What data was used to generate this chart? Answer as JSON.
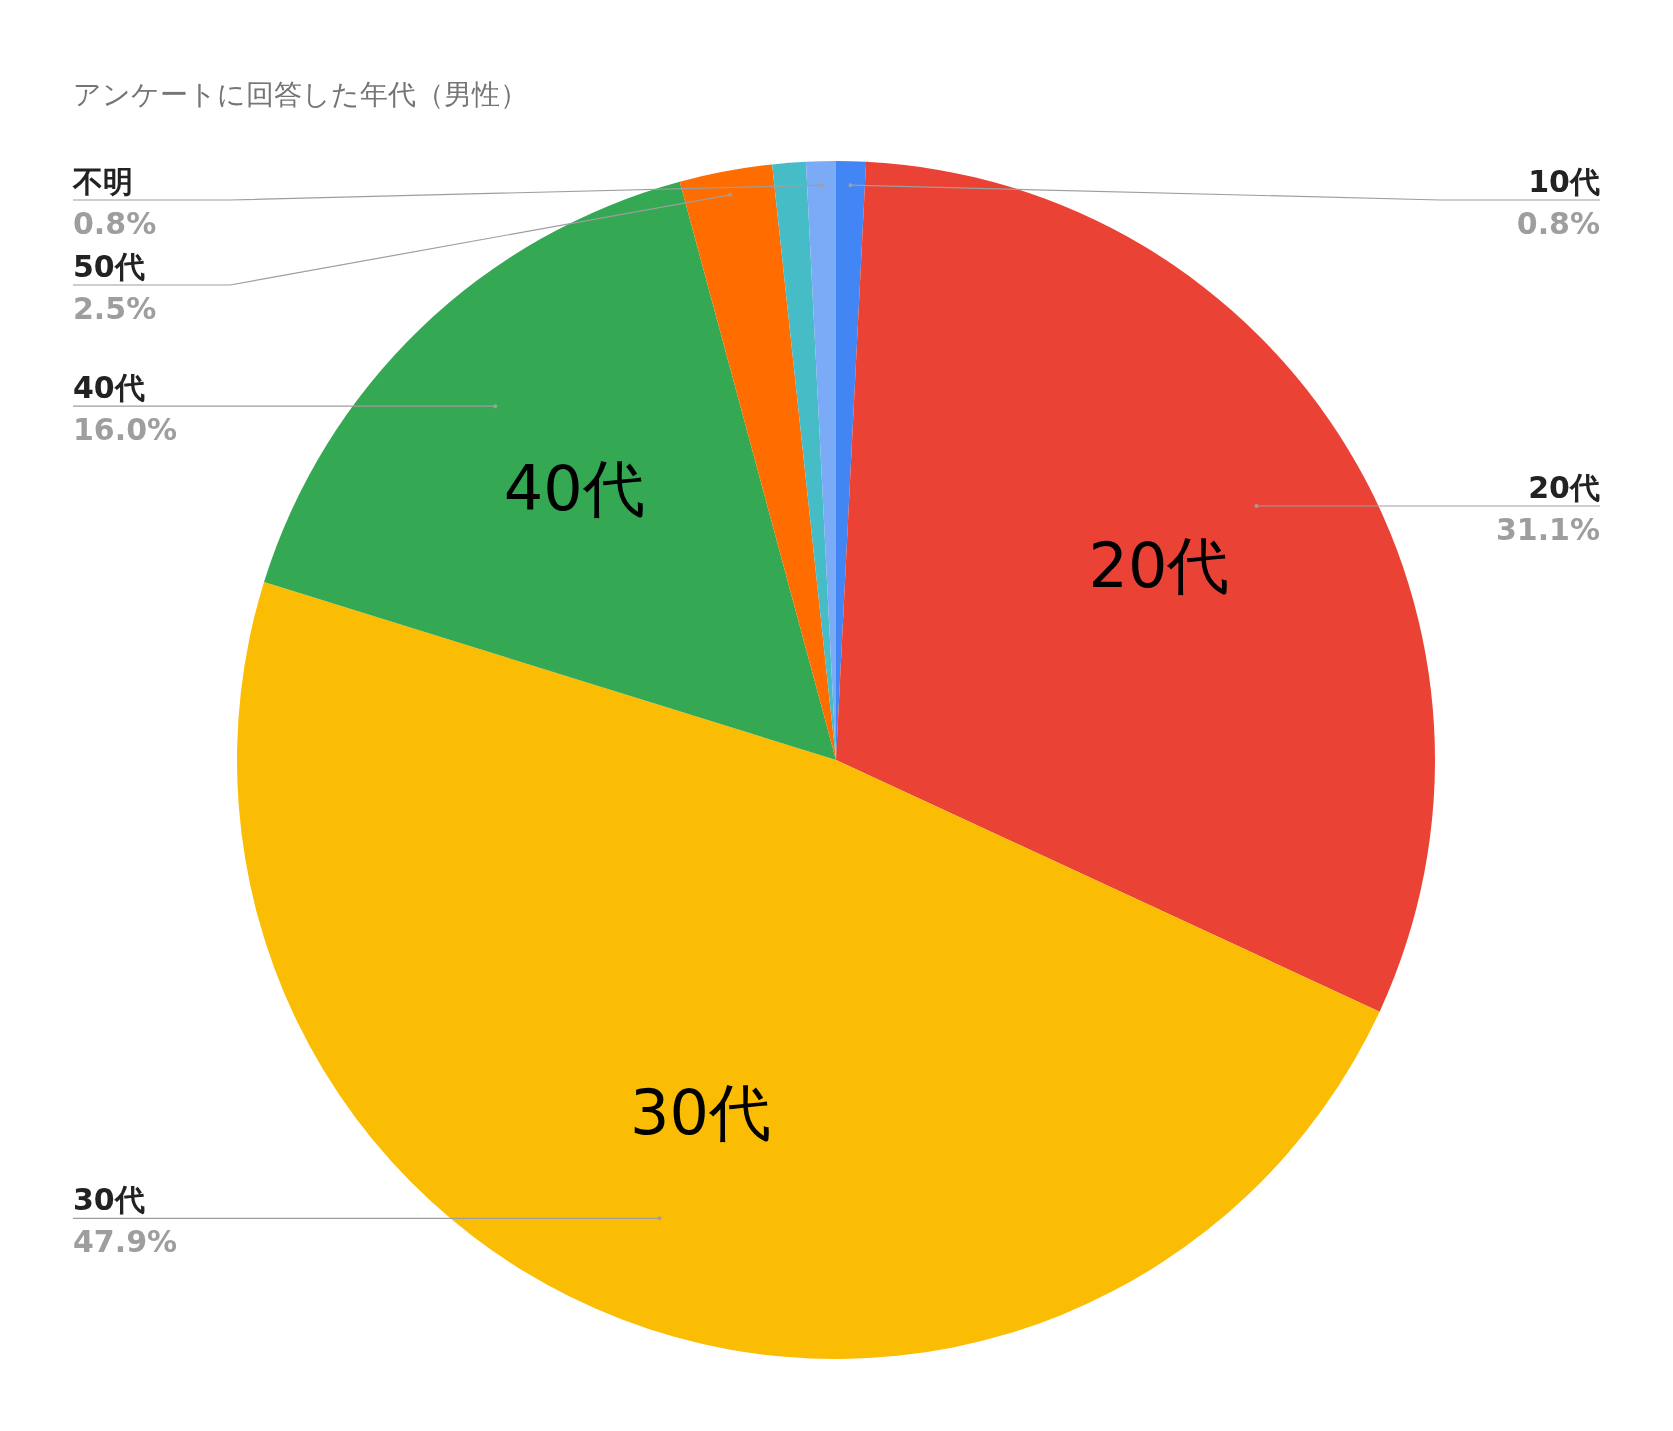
{
  "chart_data": {
    "type": "pie",
    "title": "アンケートに回答した年代（男性）",
    "categories": [
      "10代",
      "20代",
      "30代",
      "40代",
      "50代",
      null,
      "不明"
    ],
    "values": [
      0.8,
      31.1,
      47.9,
      16.0,
      2.5,
      0.9,
      0.8
    ],
    "colors": [
      "#4285f4",
      "#ea4335",
      "#fbbc04",
      "#34a853",
      "#ff6d01",
      "#46bdc6",
      "#7baaf7"
    ],
    "value_labels": [
      "0.8%",
      "31.1%",
      "47.9%",
      "16.0%",
      "2.5%",
      null,
      "0.8%"
    ]
  }
}
